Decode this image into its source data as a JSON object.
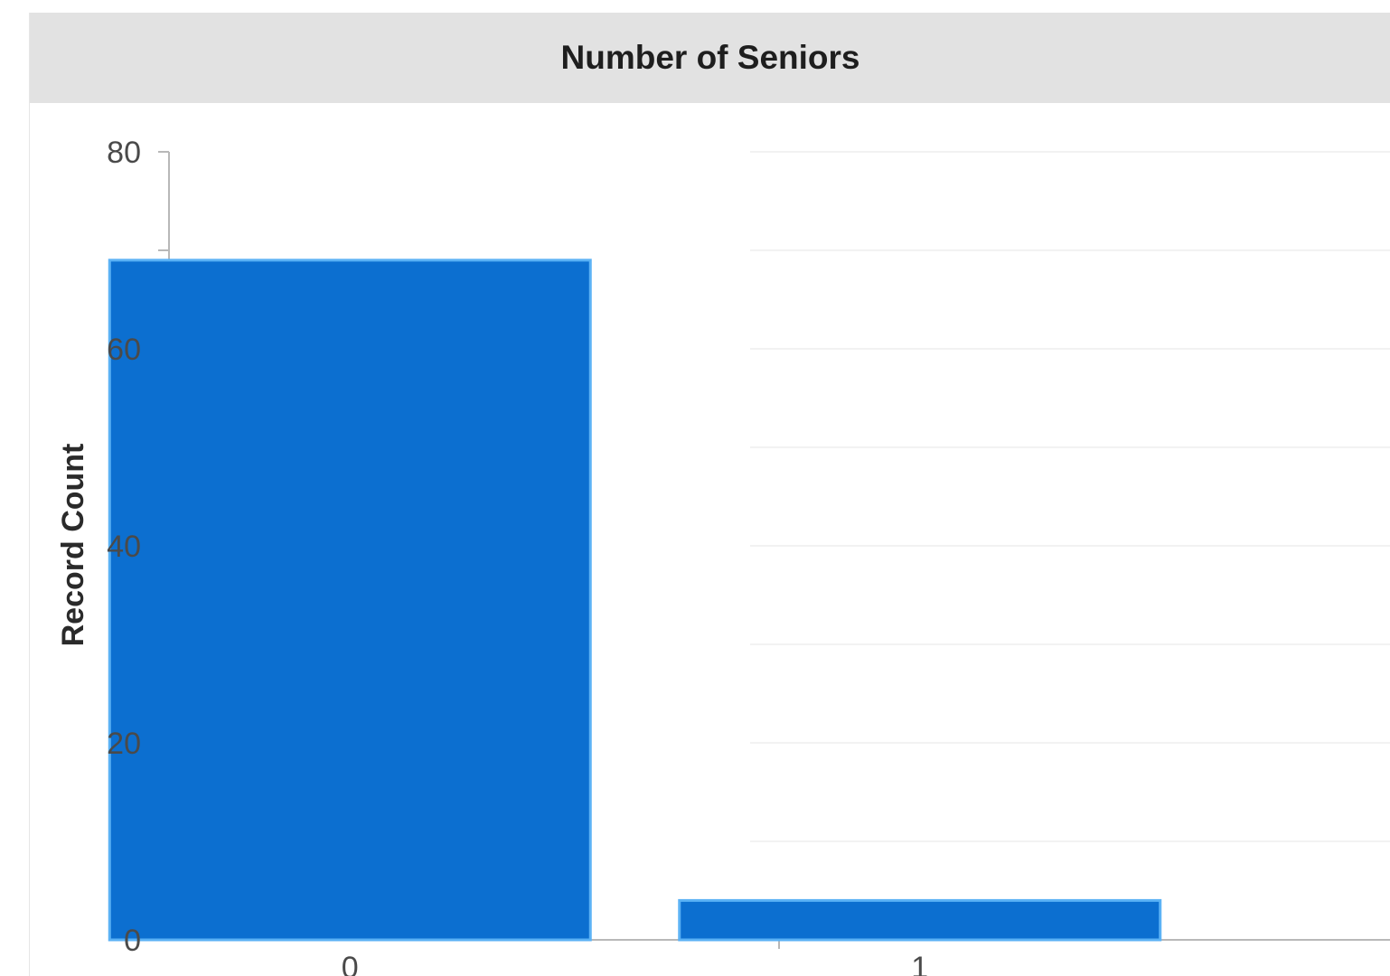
{
  "chart_data": {
    "type": "bar",
    "title": "Number of Seniors",
    "xlabel": "",
    "ylabel": "Record Count",
    "categories": [
      "0",
      "1"
    ],
    "values": [
      69,
      4
    ],
    "ylim": [
      0,
      80
    ],
    "yticks_labeled": [
      0,
      20,
      40,
      60,
      80
    ],
    "yticks_minor": [
      10,
      30,
      50,
      70
    ],
    "grid": true,
    "colors": {
      "bar": "#0c6fd0",
      "bar_edge": "#5bb2f5",
      "header_bg": "#e2e2e2",
      "grid": "#f2f2f2",
      "axis": "#b8b8b8"
    }
  }
}
